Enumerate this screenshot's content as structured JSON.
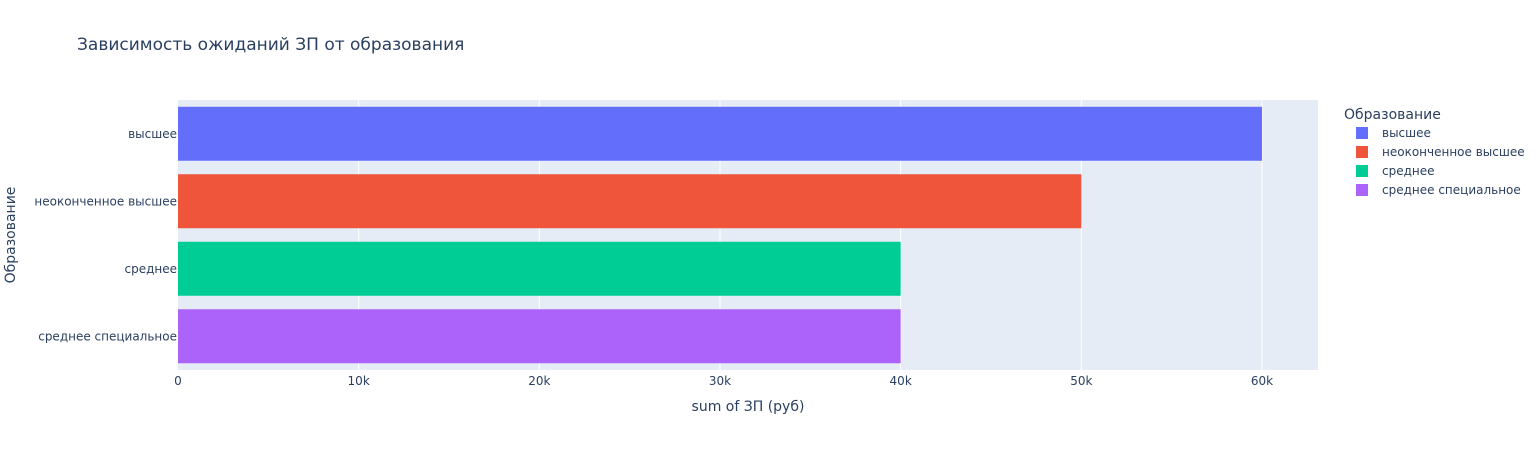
{
  "chart_data": {
    "type": "bar",
    "orientation": "horizontal",
    "title": "Зависимость ожиданий ЗП от образования",
    "xlabel": "sum of ЗП (руб)",
    "ylabel": "Образование",
    "xlim": [
      0,
      63100
    ],
    "x_ticks": [
      0,
      10000,
      20000,
      30000,
      40000,
      50000,
      60000
    ],
    "x_tick_labels": [
      "0",
      "10k",
      "20k",
      "30k",
      "40k",
      "50k",
      "60k"
    ],
    "categories": [
      "высшее",
      "неоконченное высшее",
      "среднее",
      "среднее специальное"
    ],
    "series": [
      {
        "name": "высшее",
        "category": "высшее",
        "value": 60000,
        "color": "#636efa"
      },
      {
        "name": "неоконченное высшее",
        "category": "неоконченное высшее",
        "value": 50000,
        "color": "#ef553b"
      },
      {
        "name": "среднее",
        "category": "среднее",
        "value": 40000,
        "color": "#00cc96"
      },
      {
        "name": "среднее специальное",
        "category": "среднее специальное",
        "value": 40000,
        "color": "#ab63fa"
      }
    ],
    "legend_title": "Образование",
    "legend_position": "right",
    "grid": true,
    "plot_background": "#e5ecf6",
    "text_color": "#2a3f5f"
  }
}
